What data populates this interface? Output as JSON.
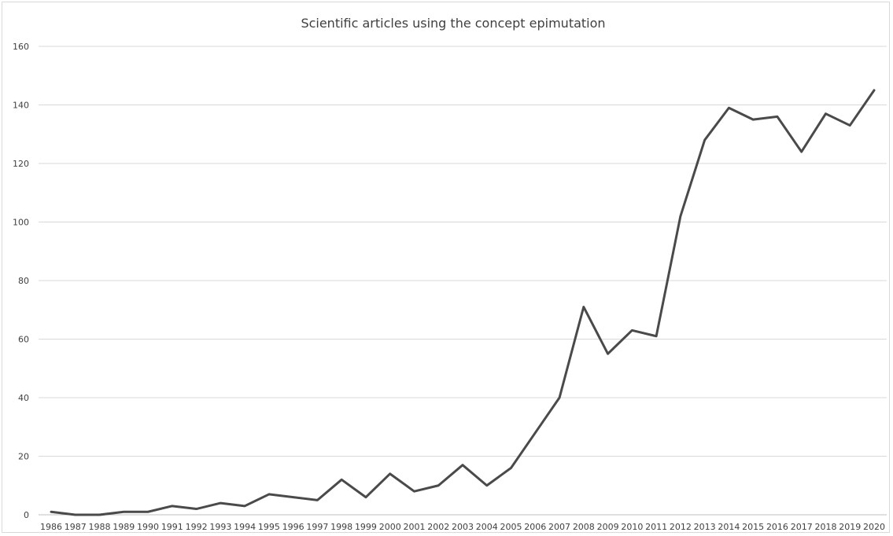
{
  "chart_data": {
    "type": "line",
    "title": "Scientific articles using the concept epimutation",
    "xlabel": "",
    "ylabel": "",
    "ylim": [
      0,
      160
    ],
    "yticks": [
      0,
      20,
      40,
      60,
      80,
      100,
      120,
      140,
      160
    ],
    "grid": true,
    "legend": "none",
    "line_color": "#4a4a4a",
    "x": [
      "1986",
      "1987",
      "1988",
      "1989",
      "1990",
      "1991",
      "1992",
      "1993",
      "1994",
      "1995",
      "1996",
      "1997",
      "1998",
      "1999",
      "2000",
      "2001",
      "2002",
      "2003",
      "2004",
      "2005",
      "2006",
      "2007",
      "2008",
      "2009",
      "2010",
      "2011",
      "2012",
      "2013",
      "2014",
      "2015",
      "2016",
      "2017",
      "2018",
      "2019",
      "2020"
    ],
    "series": [
      {
        "values": [
          1,
          0,
          0,
          1,
          1,
          3,
          2,
          4,
          3,
          7,
          6,
          5,
          12,
          6,
          14,
          8,
          10,
          17,
          10,
          16,
          28,
          40,
          71,
          55,
          63,
          61,
          102,
          128,
          139,
          135,
          136,
          124,
          137,
          133,
          145
        ]
      }
    ]
  }
}
